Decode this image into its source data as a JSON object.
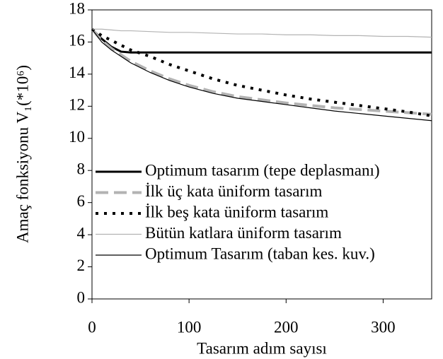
{
  "chart_data": {
    "type": "line",
    "x_label": "Tasarım adım sayısı",
    "y_label": "Amaç fonksiyonu V₁(*10⁶)",
    "x": [
      0,
      10,
      20,
      30,
      40,
      60,
      80,
      100,
      125,
      150,
      175,
      200,
      225,
      250,
      275,
      300,
      325,
      350
    ],
    "series": [
      {
        "name": "Optimum tasarım (tepe deplasmanı)",
        "color": "#000000",
        "style": "solid-thick",
        "values": [
          16.8,
          16.2,
          15.7,
          15.4,
          15.35,
          15.35,
          15.35,
          15.35,
          15.35,
          15.35,
          15.35,
          15.35,
          15.35,
          15.35,
          15.35,
          15.35,
          15.35,
          15.35
        ]
      },
      {
        "name": "İlk üç kata üniform tasarım",
        "color": "#b3b3b3",
        "style": "dashed",
        "values": [
          16.8,
          16.1,
          15.6,
          15.2,
          14.8,
          14.2,
          13.7,
          13.3,
          12.9,
          12.6,
          12.4,
          12.2,
          12.05,
          11.9,
          11.8,
          11.7,
          11.6,
          11.5
        ]
      },
      {
        "name": "İlk beş kata üniform tasarım",
        "color": "#000000",
        "style": "dotted",
        "values": [
          16.8,
          16.4,
          16.1,
          15.8,
          15.5,
          15.1,
          14.6,
          14.2,
          13.7,
          13.3,
          13.0,
          12.7,
          12.45,
          12.25,
          12.05,
          11.85,
          11.65,
          11.4
        ]
      },
      {
        "name": "Bütün katlara üniform tasarım",
        "color": "#b3b3b3",
        "style": "solid",
        "values": [
          16.8,
          16.8,
          16.75,
          16.7,
          16.7,
          16.65,
          16.6,
          16.6,
          16.55,
          16.5,
          16.5,
          16.45,
          16.45,
          16.4,
          16.4,
          16.35,
          16.35,
          16.3
        ]
      },
      {
        "name": "Optimum Tasarım (taban kes. kuv.)",
        "color": "#000000",
        "style": "solid",
        "values": [
          16.8,
          16.0,
          15.5,
          15.1,
          14.7,
          14.1,
          13.6,
          13.2,
          12.8,
          12.5,
          12.3,
          12.1,
          11.9,
          11.7,
          11.55,
          11.4,
          11.25,
          11.1
        ]
      }
    ],
    "xlim": [
      0,
      350
    ],
    "xticks": [
      0,
      100,
      200,
      300
    ],
    "ylim": [
      0,
      18
    ],
    "yticks": [
      0,
      2,
      4,
      6,
      8,
      10,
      12,
      14,
      16,
      18
    ],
    "legend": "lower-left"
  }
}
